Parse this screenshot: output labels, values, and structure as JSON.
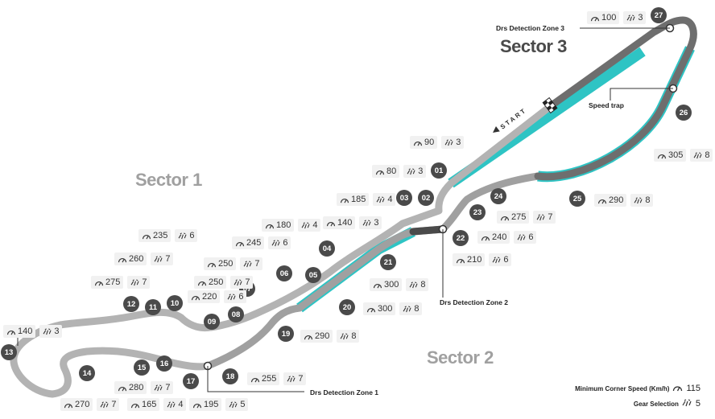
{
  "sectors": {
    "s1": "Sector 1",
    "s2": "Sector 2",
    "s3": "Sector 3"
  },
  "start_label": "START",
  "labels": {
    "drs_detection_1": "Drs Detection Zone 1",
    "drs_detection_2": "Drs Detection Zone 2",
    "drs_detection_3": "Drs Detection Zone 3",
    "speed_trap": "Speed trap"
  },
  "legend": {
    "min_speed_label": "Minimum Corner Speed (Km/h)",
    "min_speed_value": "115",
    "gear_label": "Gear Selection",
    "gear_value": "5"
  },
  "turns": [
    "01",
    "02",
    "03",
    "04",
    "05",
    "06",
    "07",
    "08",
    "09",
    "10",
    "11",
    "12",
    "13",
    "14",
    "15",
    "16",
    "17",
    "18",
    "19",
    "20",
    "21",
    "22",
    "23",
    "24",
    "25",
    "26",
    "27"
  ],
  "corner_info": [
    {
      "speed": "90",
      "gear": "3"
    },
    {
      "speed": "80",
      "gear": "3"
    },
    {
      "speed": "185",
      "gear": "4"
    },
    {
      "speed": "140",
      "gear": "3"
    },
    {
      "speed": "180",
      "gear": "4"
    },
    {
      "speed": "245",
      "gear": "6"
    },
    {
      "speed": "250",
      "gear": "7"
    },
    {
      "speed": "250",
      "gear": "7"
    },
    {
      "speed": "220",
      "gear": "6"
    },
    {
      "speed": "235",
      "gear": "6"
    },
    {
      "speed": "260",
      "gear": "7"
    },
    {
      "speed": "275",
      "gear": "7"
    },
    {
      "speed": "140",
      "gear": "3"
    },
    {
      "speed": "270",
      "gear": "7"
    },
    {
      "speed": "280",
      "gear": "7"
    },
    {
      "speed": "165",
      "gear": "4"
    },
    {
      "speed": "195",
      "gear": "5"
    },
    {
      "speed": "255",
      "gear": "7"
    },
    {
      "speed": "290",
      "gear": "8"
    },
    {
      "speed": "300",
      "gear": "8"
    },
    {
      "speed": "300",
      "gear": "8"
    },
    {
      "speed": "210",
      "gear": "6"
    },
    {
      "speed": "240",
      "gear": "6"
    },
    {
      "speed": "275",
      "gear": "7"
    },
    {
      "speed": "290",
      "gear": "8"
    },
    {
      "speed": "305",
      "gear": "8"
    },
    {
      "speed": "100",
      "gear": "3"
    }
  ],
  "colors": {
    "sector1": "#b3b3b3",
    "sector2": "#a0a0a0",
    "sector3": "#6e6e6e",
    "drs": "#2ec4c4",
    "turn_marker": "#4a4a4a"
  }
}
